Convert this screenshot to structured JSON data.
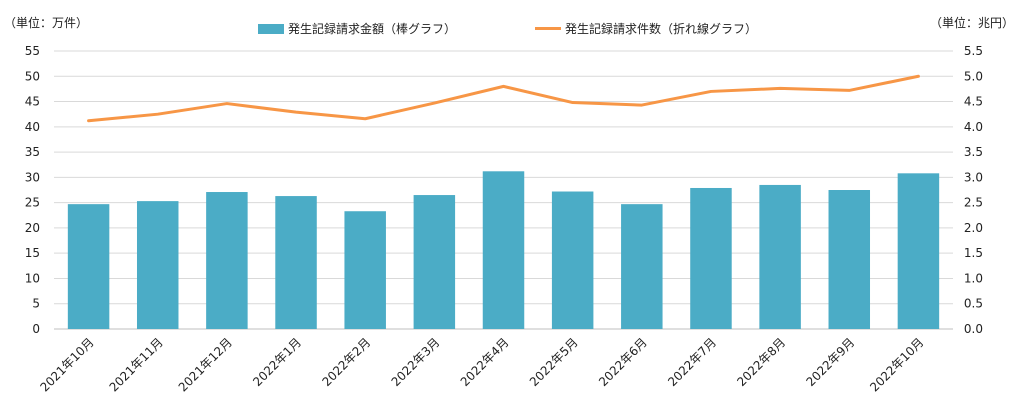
{
  "chart_data": {
    "type": "bar",
    "categories": [
      "2021年10月",
      "2021年11月",
      "2021年12月",
      "2022年1月",
      "2022年2月",
      "2022年3月",
      "2022年4月",
      "2022年5月",
      "2022年6月",
      "2022年7月",
      "2022年8月",
      "2022年9月",
      "2022年10月"
    ],
    "series": [
      {
        "name": "発生記録請求金額（棒グラフ）",
        "type": "bar",
        "axis": "right",
        "unit": "兆円",
        "values": [
          2.47,
          2.53,
          2.71,
          2.63,
          2.33,
          2.65,
          3.12,
          2.72,
          2.47,
          2.79,
          2.85,
          2.75,
          3.08
        ],
        "color": "#4bacc6"
      },
      {
        "name": "発生記録請求件数（折れ線グラフ）",
        "type": "line",
        "axis": "left",
        "unit": "万件",
        "values": [
          41.2,
          42.5,
          44.6,
          42.9,
          41.6,
          44.7,
          48.0,
          44.8,
          44.3,
          47.0,
          47.6,
          47.2,
          50.0
        ],
        "color": "#f79646"
      }
    ],
    "left_axis": {
      "label": "（単位：万件）",
      "min": 0,
      "max": 55,
      "step": 5,
      "ticks": [
        "0",
        "5",
        "10",
        "15",
        "20",
        "25",
        "30",
        "35",
        "40",
        "45",
        "50",
        "55"
      ]
    },
    "right_axis": {
      "label": "（単位：兆円）",
      "min": 0,
      "max": 5.5,
      "step": 0.5,
      "ticks": [
        "0.0",
        "0.5",
        "1.0",
        "1.5",
        "2.0",
        "2.5",
        "3.0",
        "3.5",
        "4.0",
        "4.5",
        "5.0",
        "5.5"
      ]
    },
    "grid": true,
    "legend_position": "top"
  }
}
